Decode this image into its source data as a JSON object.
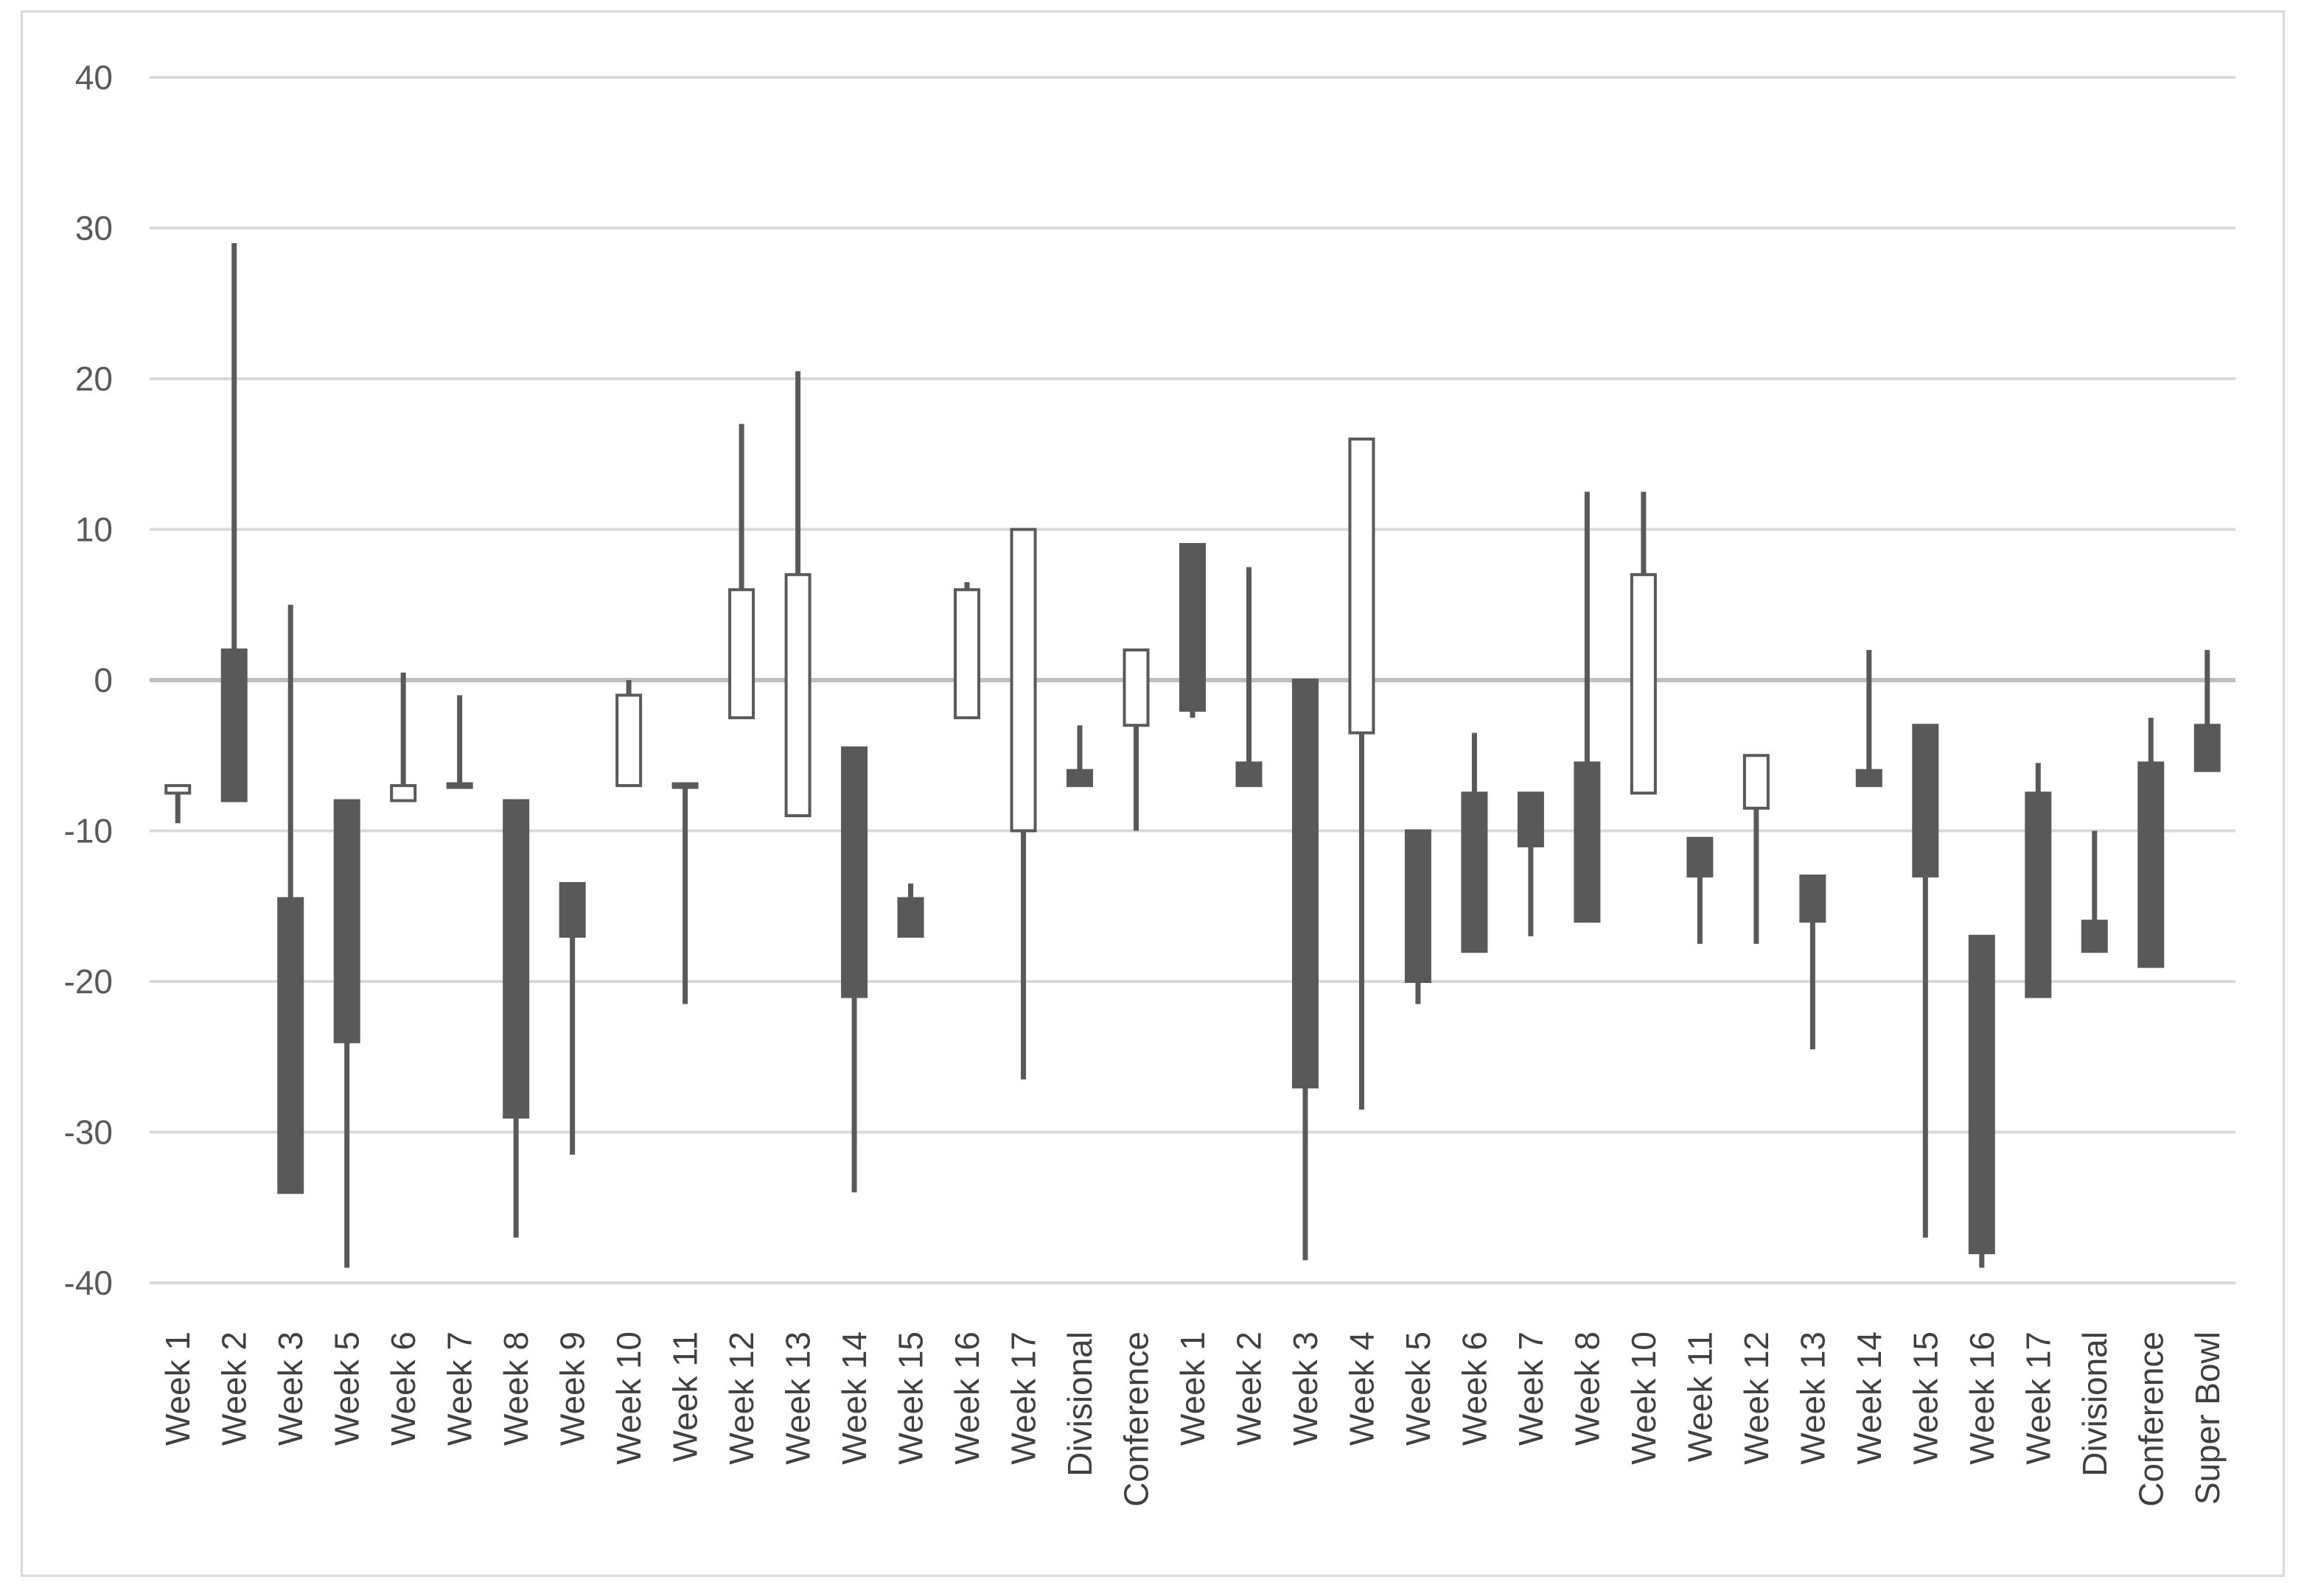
{
  "chart_data": {
    "type": "candlestick",
    "title": "",
    "xlabel": "",
    "ylabel": "",
    "ylim": [
      -40,
      40
    ],
    "yticks": [
      40,
      30,
      20,
      10,
      0,
      -10,
      -20,
      -30,
      -40
    ],
    "ytick_labels": [
      "40",
      "30",
      "20",
      "10",
      "0",
      "-10",
      "-20",
      "-30",
      "-40"
    ],
    "grid": true,
    "legend": "none",
    "colors": {
      "down_fill": "#595959",
      "up_fill": "#ffffff",
      "stroke": "#595959",
      "grid": "#d9d9d9",
      "zero_line": "#bfbfbf"
    },
    "categories": [
      "Week 1",
      "Week 2",
      "Week 3",
      "Week 5",
      "Week 6",
      "Week 7",
      "Week 8",
      "Week 9",
      "Week 10",
      "Week 11",
      "Week 12",
      "Week 13",
      "Week 14",
      "Week 15",
      "Week 16",
      "Week 17",
      "Divisional",
      "Conference",
      "Week 1",
      "Week 2",
      "Week 3",
      "Week 4",
      "Week 5",
      "Week 6",
      "Week 7",
      "Week 8",
      "Week 10",
      "Week 11",
      "Week 12",
      "Week 13",
      "Week 14",
      "Week 15",
      "Week 16",
      "Week 17",
      "Divisional",
      "Conference",
      "Super Bowl"
    ],
    "candles": [
      {
        "open": -7.5,
        "close": -7,
        "high": -7,
        "low": -9.5
      },
      {
        "open": 2,
        "close": -8,
        "high": 29,
        "low": -8
      },
      {
        "open": -14.5,
        "close": -34,
        "high": 5,
        "low": -34
      },
      {
        "open": -8,
        "close": -24,
        "high": -8,
        "low": -39
      },
      {
        "open": -8,
        "close": -7,
        "high": 0.5,
        "low": -8
      },
      {
        "open": -7,
        "close": -7,
        "high": -1,
        "low": -7
      },
      {
        "open": -8,
        "close": -29,
        "high": -8,
        "low": -37
      },
      {
        "open": -13.5,
        "close": -17,
        "high": -13.5,
        "low": -31.5
      },
      {
        "open": -7,
        "close": -1,
        "high": 0,
        "low": -7
      },
      {
        "open": -7,
        "close": -7,
        "high": -7,
        "low": -21.5
      },
      {
        "open": -2.5,
        "close": 6,
        "high": 17,
        "low": -2.5
      },
      {
        "open": -9,
        "close": 7,
        "high": 20.5,
        "low": -9
      },
      {
        "open": -4.5,
        "close": -21,
        "high": -4.5,
        "low": -34
      },
      {
        "open": -14.5,
        "close": -17,
        "high": -13.5,
        "low": -17
      },
      {
        "open": -2.5,
        "close": 6,
        "high": 6.5,
        "low": -2.5
      },
      {
        "open": -10,
        "close": 10,
        "high": 10,
        "low": -26.5
      },
      {
        "open": -6,
        "close": -7,
        "high": -3,
        "low": -7
      },
      {
        "open": -3,
        "close": 2,
        "high": 2,
        "low": -10
      },
      {
        "open": 9,
        "close": -2,
        "high": 9,
        "low": -2.5
      },
      {
        "open": -5.5,
        "close": -7,
        "high": 7.5,
        "low": -7
      },
      {
        "open": 0,
        "close": -27,
        "high": 0,
        "low": -38.5
      },
      {
        "open": -3.5,
        "close": 16,
        "high": 16,
        "low": -28.5
      },
      {
        "open": -10,
        "close": -20,
        "high": -10,
        "low": -21.5
      },
      {
        "open": -7.5,
        "close": -18,
        "high": -3.5,
        "low": -18
      },
      {
        "open": -7.5,
        "close": -11,
        "high": -7.5,
        "low": -17
      },
      {
        "open": -5.5,
        "close": -16,
        "high": 12.5,
        "low": -16
      },
      {
        "open": -7.5,
        "close": 7,
        "high": 12.5,
        "low": -7.5
      },
      {
        "open": -10.5,
        "close": -13,
        "high": -10.5,
        "low": -17.5
      },
      {
        "open": -8.5,
        "close": -5,
        "high": -5,
        "low": -17.5
      },
      {
        "open": -13,
        "close": -16,
        "high": -13,
        "low": -24.5
      },
      {
        "open": -6,
        "close": -7,
        "high": 2,
        "low": -7
      },
      {
        "open": -3,
        "close": -13,
        "high": -3,
        "low": -37
      },
      {
        "open": -17,
        "close": -38,
        "high": -17,
        "low": -39
      },
      {
        "open": -7.5,
        "close": -21,
        "high": -5.5,
        "low": -21
      },
      {
        "open": -16,
        "close": -18,
        "high": -10,
        "low": -18
      },
      {
        "open": -5.5,
        "close": -19,
        "high": -2.5,
        "low": -19
      },
      {
        "open": -3,
        "close": -6,
        "high": 2,
        "low": -6
      }
    ]
  }
}
